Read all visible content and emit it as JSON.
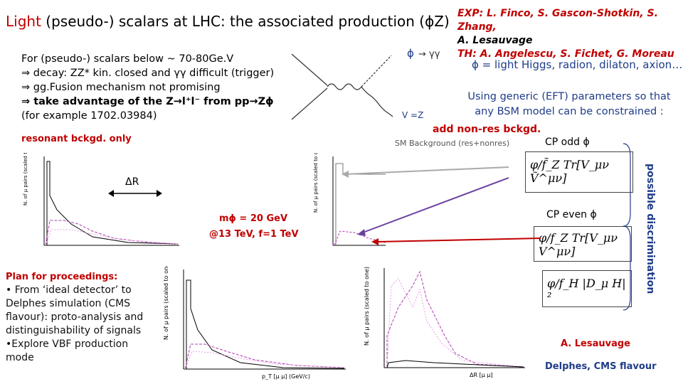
{
  "title": {
    "prefix": "Light",
    "rest": " (pseudo-) scalars at LHC: the associated production (ϕZ)"
  },
  "credits": {
    "exp": "EXP: L. Finco, S. Gascon-Shotkin, S. Zhang,",
    "exp2": "A. Lesauvage",
    "th": "TH: A. Angelescu, S. Fichet, G. Moreau"
  },
  "phi_line": "ϕ = light Higgs, radion, dilaton, axion…",
  "body": [
    "For (pseudo-) scalars below ~ 70-80Ge.V",
    "⇒ decay: ZZ* kin. closed and γγ difficult (trigger)",
    "⇒ gg.Fusion mechanism not promising",
    "⇒ take advantage of the Z→l⁺l⁻ from pp→Zϕ",
    "(for example 1702.03984)"
  ],
  "resonant": "resonant bckgd. only",
  "using": "Using generic (EFT) parameters so that any BSM model can be constrained :",
  "add_nonres": "add non-res bckgd.",
  "sm_bkg": "SM Background (res+nonres)",
  "cp_odd": "CP odd ϕ",
  "cp_even": "CP even ϕ",
  "possible": "possible discrimination",
  "delta_r": "ΔR",
  "mass": "mϕ = 20 GeV",
  "energy": "@13 TeV, f=1 TeV",
  "feynman": {
    "phi": "ϕ",
    "gg": "→ γγ",
    "vz": "V =Z"
  },
  "plan": {
    "heading": "Plan for proceedings:",
    "items": [
      "• From ‘ideal detector’ to Delphes simulation (CMS flavour): proto-analysis and distinguishability of signals",
      "•Explore VBF production mode"
    ]
  },
  "lesauvage": "A. Lesauvage",
  "delphes": "Delphes, CMS flavour",
  "formulas": {
    "odd": "φ/f̃_Z Tr[V_μν Ṽ^μν]",
    "even": "φ/f_Z Tr[V_μν V^μν]",
    "h": "φ/f_H |D_μ H|²"
  },
  "plots": {
    "ylabel": "N. of μ pairs (scaled to one)",
    "xlabel_pt": "p_T [μ μ] (GeV/c)",
    "xlabel_dr": "ΔR [μ μ]"
  },
  "colors": {
    "accent": "#c00000",
    "blue": "#1f3c88"
  }
}
